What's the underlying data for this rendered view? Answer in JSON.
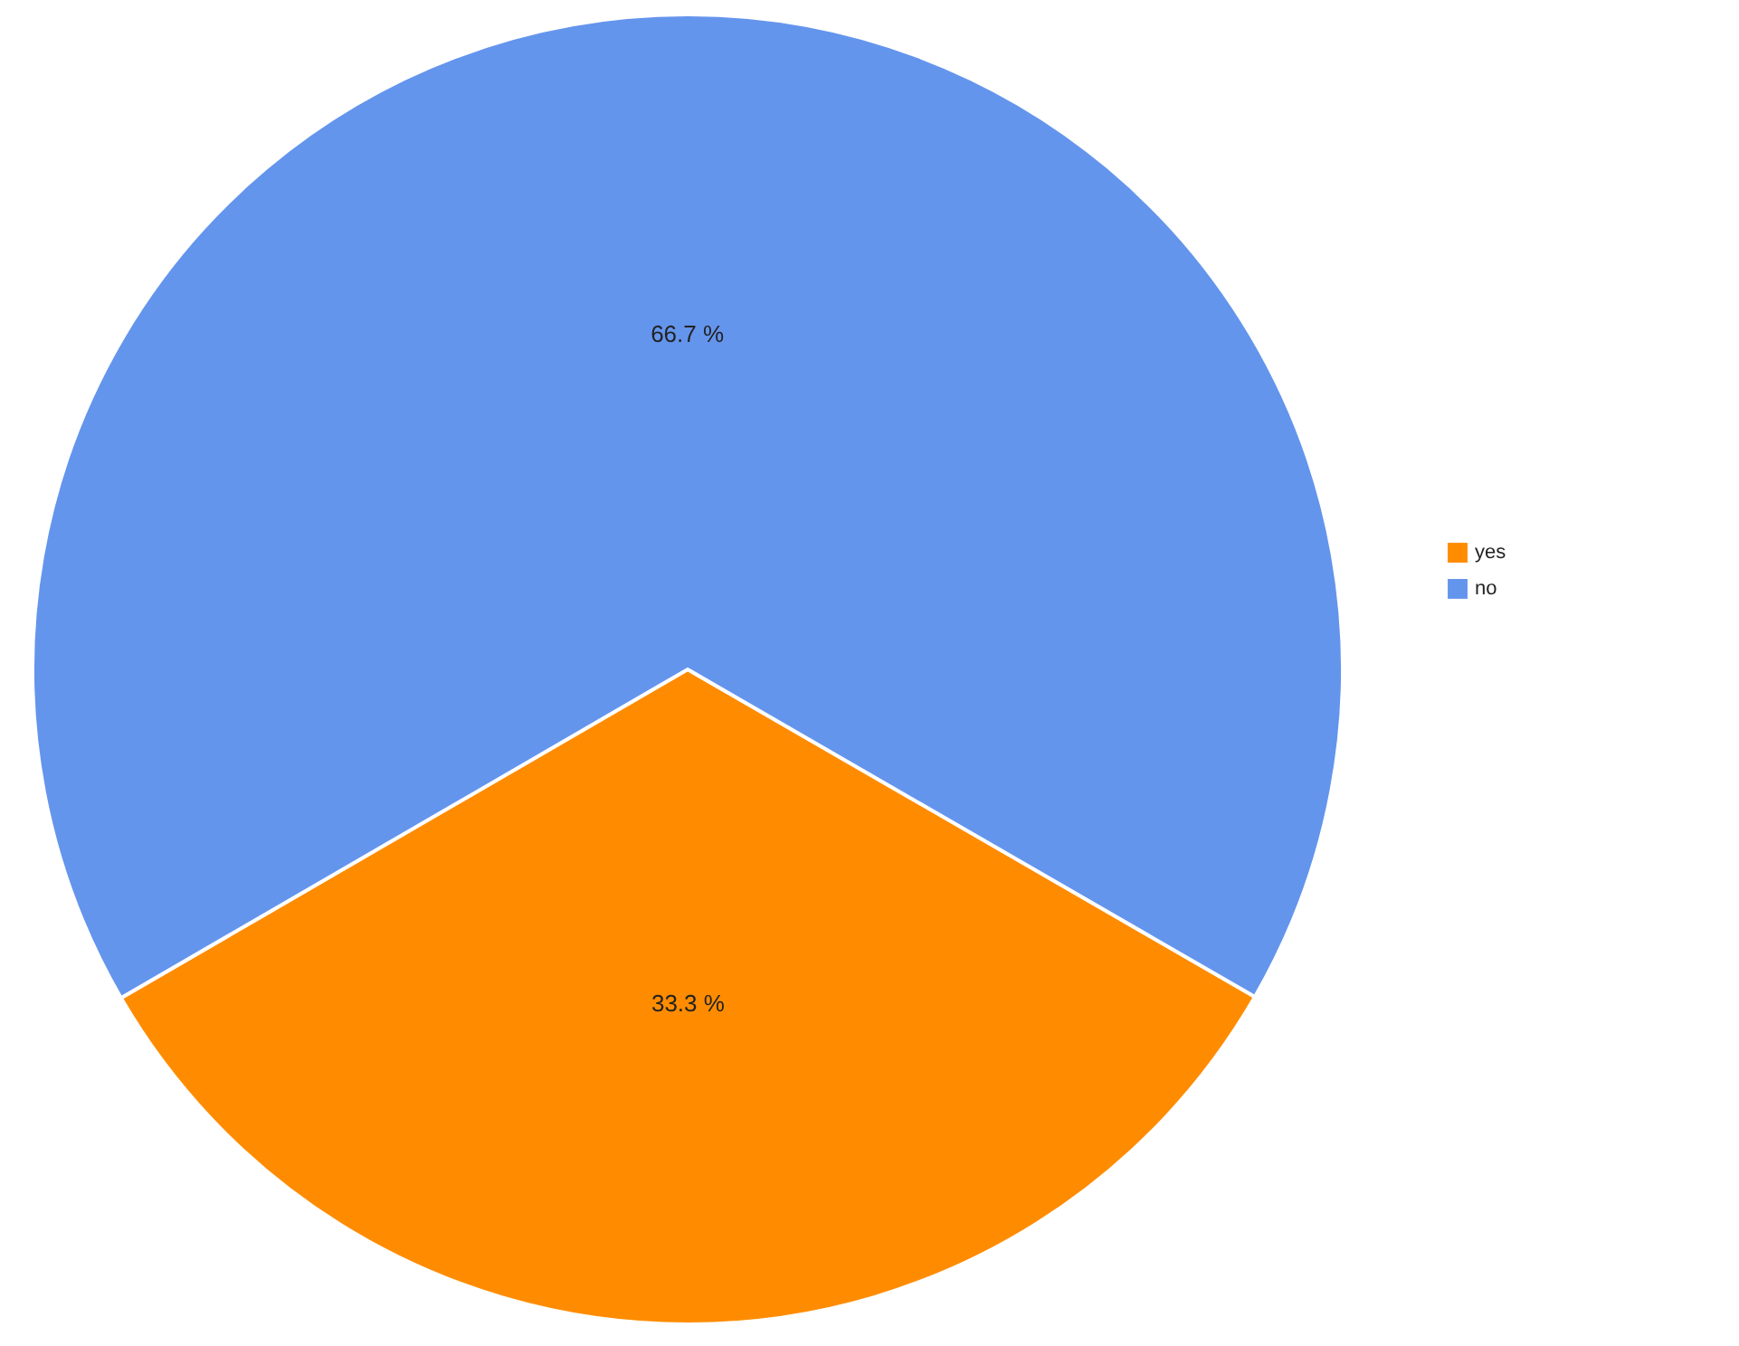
{
  "chart_data": {
    "type": "pie",
    "categories": [
      "yes",
      "no"
    ],
    "values": [
      33.3,
      66.7
    ],
    "colors": [
      "#ff8c00",
      "#6495ed"
    ],
    "value_labels": [
      "33.3 %",
      "66.7 %"
    ],
    "legend": "right"
  }
}
